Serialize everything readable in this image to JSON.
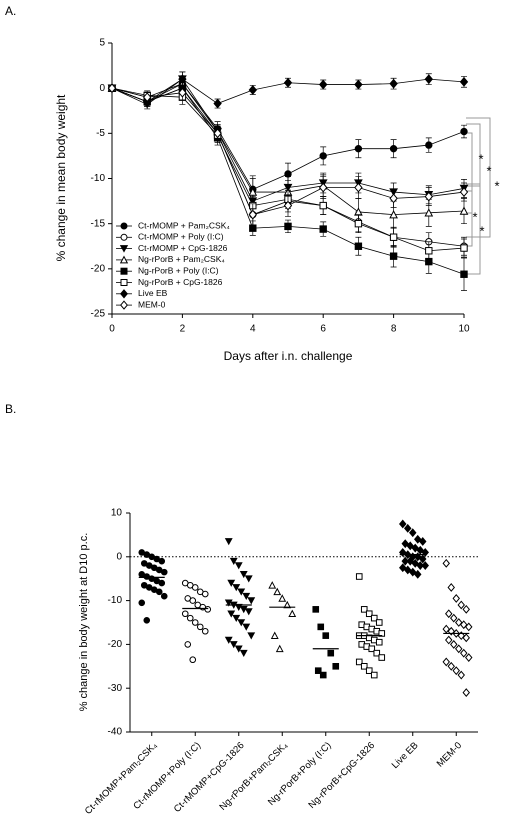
{
  "chart_data": [
    {
      "type": "line",
      "panel_label": "A.",
      "xlabel": "Days after i.n. challenge",
      "ylabel": "% change in mean body weight",
      "x": [
        0,
        1,
        2,
        3,
        4,
        5,
        6,
        7,
        8,
        9,
        10
      ],
      "xlim": [
        0,
        10
      ],
      "xticks": [
        0,
        2,
        4,
        6,
        8,
        10
      ],
      "ylim": [
        -25,
        5
      ],
      "yticks": [
        -25,
        -20,
        -15,
        -10,
        -5,
        0,
        5
      ],
      "series": [
        {
          "name": "Ct-rMOMP + Pam₂CSK₄",
          "color": "#000000",
          "marker": "circle",
          "values": [
            0,
            -1.5,
            0.5,
            -4.5,
            -11.2,
            -9.5,
            -7.5,
            -6.7,
            -6.7,
            -6.3,
            -4.8
          ],
          "errors": [
            0.3,
            0.5,
            0.8,
            0.8,
            1.5,
            1.2,
            1,
            1,
            1,
            0.8,
            0.7
          ]
        },
        {
          "name": "Ct-rMOMP + Poly (I:C)",
          "color": "#000000",
          "marker": "circle-open",
          "values": [
            0,
            -1.5,
            0,
            -5,
            -14,
            -12.5,
            -13,
            -14.8,
            -16.5,
            -17,
            -17.5
          ],
          "errors": [
            0.3,
            0.5,
            0.8,
            0.8,
            1.2,
            1.2,
            1,
            1.1,
            1.1,
            1,
            1
          ]
        },
        {
          "name": "Ct-rMOMP + CpG-1826",
          "color": "#000000",
          "marker": "triangle-down",
          "values": [
            0,
            -1.8,
            1,
            -4.8,
            -12.5,
            -11,
            -10.5,
            -10.5,
            -11.5,
            -11.8,
            -11.1
          ],
          "errors": [
            0.3,
            0.5,
            0.8,
            0.8,
            1.3,
            1.2,
            1.1,
            1.1,
            1,
            1,
            1
          ]
        },
        {
          "name": "Ng-rPorB + Pam₂CSK₄",
          "color": "#000000",
          "marker": "triangle-open",
          "values": [
            0,
            -1,
            0.5,
            -4.8,
            -11.5,
            -11.5,
            -10.8,
            -13.7,
            -14,
            -13.8,
            -13.6
          ],
          "errors": [
            0.3,
            0.5,
            0.8,
            0.8,
            1.5,
            1.3,
            1.2,
            1.5,
            1.5,
            1.5,
            1.4
          ]
        },
        {
          "name": "Ng-rPorB + Poly (I:C)",
          "color": "#000000",
          "marker": "square",
          "values": [
            0,
            -1.5,
            0,
            -5.5,
            -15.5,
            -15.3,
            -15.6,
            -17.5,
            -18.6,
            -19.2,
            -20.6
          ],
          "errors": [
            0.3,
            0.5,
            0.8,
            0.8,
            0.8,
            0.7,
            0.8,
            1,
            1.2,
            1.3,
            1.8
          ]
        },
        {
          "name": "Ng-rPorB + CpG-1826",
          "color": "#000000",
          "marker": "square-open",
          "values": [
            0,
            -0.8,
            -1,
            -5.2,
            -13,
            -12.3,
            -13,
            -15,
            -16.5,
            -18,
            -17.7
          ],
          "errors": [
            0.3,
            0.5,
            0.8,
            0.8,
            1,
            1,
            1,
            1,
            1,
            1,
            1
          ]
        },
        {
          "name": "Live EB",
          "color": "#000000",
          "marker": "diamond",
          "values": [
            0,
            -1.5,
            1,
            -1.7,
            -0.2,
            0.6,
            0.4,
            0.4,
            0.5,
            1,
            0.7
          ],
          "errors": [
            0.3,
            0.5,
            0.8,
            0.5,
            0.5,
            0.5,
            0.5,
            0.5,
            0.6,
            0.6,
            0.6
          ]
        },
        {
          "name": "MEM-0",
          "color": "#000000",
          "marker": "diamond-open",
          "values": [
            0,
            -1,
            -0.5,
            -5,
            -14,
            -13,
            -11,
            -11,
            -12.2,
            -12,
            -11.5
          ],
          "errors": [
            0.3,
            0.5,
            0.8,
            0.8,
            1.2,
            1.2,
            1.2,
            1.2,
            1,
            1,
            1
          ]
        }
      ],
      "annotations": [
        "*",
        "*",
        "*",
        "*",
        "*"
      ]
    },
    {
      "type": "strip",
      "panel_label": "B.",
      "ylabel": "% change in body weight at D10 p.c.",
      "categories": [
        "Ct-rMOMP+Pam₂CSK₄",
        "Ct-rMOMP+Poly (I:C)",
        "Ct-rMOMP+CpG-1826",
        "Ng-rPorB+Pam₂CSK₄",
        "Ng-rPorB+Poly (I:C)",
        "Ng-rPorB+CpG-1826",
        "Live EB",
        "MEM-0"
      ],
      "markers": [
        "circle",
        "circle-open",
        "triangle-down",
        "triangle-open",
        "square",
        "square-open",
        "diamond",
        "diamond-open"
      ],
      "color": "#000000",
      "ylim": [
        -40,
        10
      ],
      "yticks": [
        -40,
        -30,
        -20,
        -10,
        0,
        10
      ],
      "reference_line": 0,
      "values": [
        [
          1,
          0.5,
          0,
          -0.5,
          -1,
          -1.5,
          -2,
          -2.5,
          -3,
          -3.5,
          -4,
          -4.5,
          -5,
          -5.5,
          -6,
          -6.5,
          -7,
          -7.5,
          -8,
          -9,
          -10.5,
          -14.5
        ],
        [
          -6,
          -6.5,
          -7,
          -8,
          -8.5,
          -9.5,
          -10,
          -11,
          -11.5,
          -12,
          -13,
          -14,
          -15,
          -16,
          -17,
          -20,
          -23.5
        ],
        [
          3.5,
          -1,
          -2,
          -4,
          -5,
          -6,
          -7,
          -8,
          -9,
          -10,
          -10.5,
          -11,
          -11.5,
          -12,
          -12.5,
          -13,
          -14,
          -15,
          -16,
          -18,
          -19,
          -20,
          -21,
          -22
        ],
        [
          -6.5,
          -8,
          -9.5,
          -11,
          -13,
          -18,
          -21
        ],
        [
          -12,
          -16,
          -18,
          -22,
          -25,
          -26,
          -27
        ],
        [
          -4.5,
          -12,
          -13,
          -14,
          -15,
          -15.5,
          -16,
          -16.5,
          -17,
          -17.5,
          -18,
          -18,
          -18.5,
          -19,
          -19.5,
          -20,
          -20.5,
          -21,
          -22,
          -23,
          -24,
          -25,
          -26,
          -27
        ],
        [
          7.5,
          6.5,
          5.5,
          4,
          3.5,
          3,
          2.5,
          2,
          1.5,
          1,
          1,
          0.5,
          0,
          0,
          -0.5,
          -1,
          -1,
          -1.5,
          -2,
          -2,
          -2.5,
          -3,
          -3.5,
          -4
        ],
        [
          -1.5,
          -7,
          -9.5,
          -11,
          -12,
          -13,
          -14,
          -15,
          -15.5,
          -16,
          -16.5,
          -17,
          -17.5,
          -18,
          -18.5,
          -19,
          -20,
          -21,
          -22,
          -23,
          -24,
          -25,
          -26,
          -27,
          -31
        ]
      ],
      "means": [
        -4.7,
        -11.8,
        -11,
        -11.5,
        -21,
        -18,
        0.5,
        -17.5
      ]
    }
  ]
}
